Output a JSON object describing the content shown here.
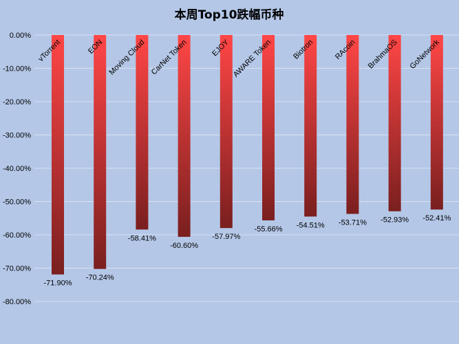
{
  "chart_data": {
    "type": "bar",
    "title": "本周Top10跌幅币种",
    "categories": [
      "vTorrent",
      "EON",
      "Moving Cloud",
      "CarNet Token",
      "EJOY",
      "AWARE Token",
      "Biotron",
      "RAcoin",
      "BrahmaOS",
      "GoNetwork"
    ],
    "values": [
      -71.9,
      -70.24,
      -58.41,
      -60.6,
      -57.97,
      -55.66,
      -54.51,
      -53.71,
      -52.93,
      -52.41
    ],
    "data_labels": [
      "-71.90%",
      "-70.24%",
      "-58.41%",
      "-60.60%",
      "-57.97%",
      "-55.66%",
      "-54.51%",
      "-53.71%",
      "-52.93%",
      "-52.41%"
    ],
    "ylim": [
      -80,
      0
    ],
    "yticks": [
      0,
      -10,
      -20,
      -30,
      -40,
      -50,
      -60,
      -70,
      -80
    ],
    "ytick_labels": [
      "0.00%",
      "-10.00%",
      "-20.00%",
      "-30.00%",
      "-40.00%",
      "-50.00%",
      "-60.00%",
      "-70.00%",
      "-80.00%"
    ],
    "grid": true,
    "legend": "none",
    "colors": {
      "background": "#b4c7e7",
      "bar_top": "#ff4646",
      "bar_bottom": "#7a1f1f",
      "grid": "#d9e2f1"
    }
  }
}
